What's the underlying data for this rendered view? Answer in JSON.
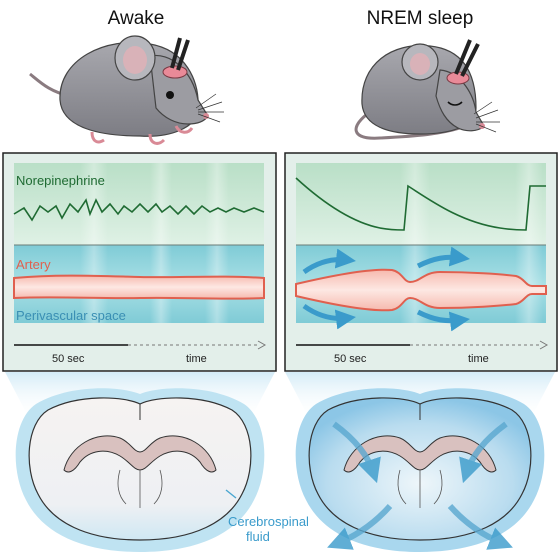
{
  "titles": {
    "left": "Awake",
    "right": "NREM sleep"
  },
  "labels": {
    "norepinephrine": "Norepinephrine",
    "artery": "Artery",
    "perivascular": "Perivascular space",
    "csf_line1": "Cerebrospinal",
    "csf_line2": "fluid"
  },
  "axis": {
    "left": {
      "scale": "50 sec",
      "time": "time"
    },
    "right": {
      "scale": "50 sec",
      "time": "time"
    }
  },
  "colors": {
    "norepinephrine": "#1f6b33",
    "artery": "#e0604f",
    "csf": "#4aa6d0",
    "panel_green": "#c7e6d2",
    "panel_cyan": "#8fd3dc",
    "mouse_gray": "#9a9aa0"
  },
  "icons": [
    "mouse-awake-icon",
    "mouse-sleeping-icon",
    "brain-section-icon",
    "flow-arrow-icon"
  ]
}
